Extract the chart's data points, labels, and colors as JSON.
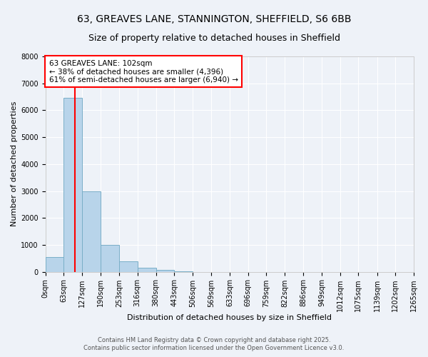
{
  "title_line1": "63, GREAVES LANE, STANNINGTON, SHEFFIELD, S6 6BB",
  "title_line2": "Size of property relative to detached houses in Sheffield",
  "xlabel": "Distribution of detached houses by size in Sheffield",
  "ylabel": "Number of detached properties",
  "bar_heights": [
    550,
    6450,
    3000,
    1000,
    380,
    150,
    60,
    10,
    0
  ],
  "bin_edges": [
    0,
    63,
    127,
    190,
    253,
    316,
    380,
    443,
    506,
    569
  ],
  "bar_color": "#b8d4ea",
  "bar_edgecolor": "#7aafc8",
  "vline_x": 102,
  "vline_color": "red",
  "ylim": [
    0,
    8000
  ],
  "yticks": [
    0,
    1000,
    2000,
    3000,
    4000,
    5000,
    6000,
    7000,
    8000
  ],
  "xtick_labels": [
    "0sqm",
    "63sqm",
    "127sqm",
    "190sqm",
    "253sqm",
    "316sqm",
    "380sqm",
    "443sqm",
    "506sqm",
    "569sqm",
    "633sqm",
    "696sqm",
    "759sqm",
    "822sqm",
    "886sqm",
    "949sqm",
    "1012sqm",
    "1075sqm",
    "1139sqm",
    "1202sqm",
    "1265sqm"
  ],
  "xtick_positions": [
    0,
    63,
    127,
    190,
    253,
    316,
    380,
    443,
    506,
    569,
    633,
    696,
    759,
    822,
    886,
    949,
    1012,
    1075,
    1139,
    1202,
    1265
  ],
  "annotation_title": "63 GREAVES LANE: 102sqm",
  "annotation_line2": "← 38% of detached houses are smaller (4,396)",
  "annotation_line3": "61% of semi-detached houses are larger (6,940) →",
  "annotation_box_color": "white",
  "annotation_box_edgecolor": "red",
  "footer_line1": "Contains HM Land Registry data © Crown copyright and database right 2025.",
  "footer_line2": "Contains public sector information licensed under the Open Government Licence v3.0.",
  "background_color": "#eef2f8",
  "grid_color": "white",
  "title_fontsize": 10,
  "subtitle_fontsize": 9,
  "axis_label_fontsize": 8,
  "tick_fontsize": 7,
  "footer_fontsize": 6,
  "annotation_fontsize": 7.5
}
